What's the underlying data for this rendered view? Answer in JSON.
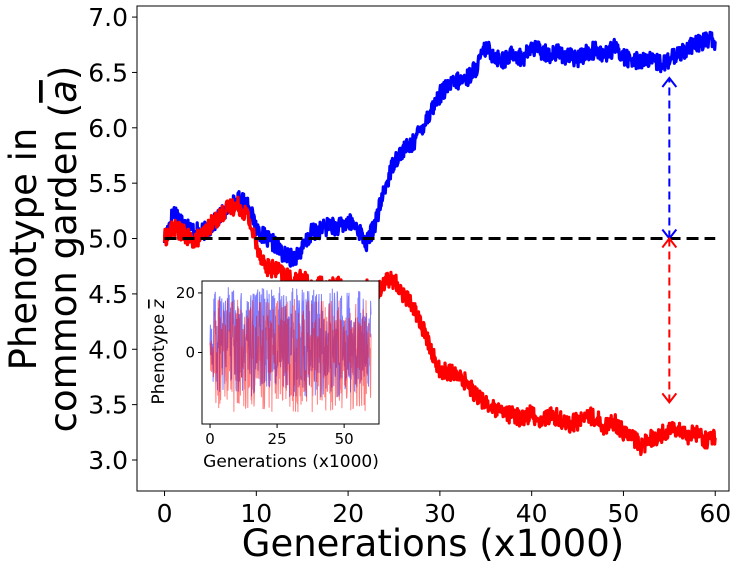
{
  "chart_data": [
    {
      "type": "line",
      "xlabel": "Generations (x1000)",
      "ylabel_line1": "Phenotype in",
      "ylabel_line2": "common garden (",
      "ylabel_symbol": "a",
      "ylabel_close": ")",
      "xlim": [
        -3,
        61.5
      ],
      "ylim": [
        2.72,
        7.1
      ],
      "xticks": [
        0,
        10,
        20,
        30,
        40,
        50,
        60
      ],
      "yticks": [
        3.0,
        3.5,
        4.0,
        4.5,
        5.0,
        5.5,
        6.0,
        6.5,
        7.0
      ],
      "ytick_labels": [
        "3.0",
        "3.5",
        "4.0",
        "4.5",
        "5.0",
        "5.5",
        "6.0",
        "6.5",
        "7.0"
      ],
      "reference_line": {
        "y": 5.0,
        "x_start": 0,
        "x_end": 60,
        "color": "#000000",
        "style": "dashed"
      },
      "series": [
        {
          "color": "#0000ff",
          "x": [
            0,
            1,
            2,
            3,
            4,
            5,
            6,
            7,
            8,
            9,
            10,
            11,
            12,
            13,
            14,
            15,
            16,
            17,
            18,
            19,
            20,
            21,
            22,
            23,
            24,
            25,
            26,
            27,
            28,
            29,
            30,
            31,
            32,
            33,
            34,
            35,
            36,
            37,
            38,
            39,
            40,
            41,
            42,
            43,
            44,
            45,
            46,
            47,
            48,
            49,
            50,
            51,
            52,
            53,
            54,
            55,
            56,
            57,
            58,
            59,
            60
          ],
          "y": [
            5.0,
            5.25,
            5.15,
            5.08,
            5.05,
            5.1,
            5.2,
            5.28,
            5.35,
            5.32,
            5.1,
            5.0,
            4.95,
            4.85,
            4.82,
            4.9,
            5.05,
            5.08,
            5.12,
            5.1,
            5.15,
            5.1,
            4.95,
            5.15,
            5.45,
            5.7,
            5.8,
            5.85,
            6.0,
            6.15,
            6.3,
            6.38,
            6.42,
            6.45,
            6.55,
            6.72,
            6.65,
            6.6,
            6.68,
            6.62,
            6.72,
            6.7,
            6.66,
            6.68,
            6.64,
            6.62,
            6.68,
            6.7,
            6.66,
            6.72,
            6.65,
            6.6,
            6.62,
            6.6,
            6.58,
            6.6,
            6.68,
            6.72,
            6.75,
            6.8,
            6.78
          ]
        },
        {
          "color": "#ff0000",
          "x": [
            0,
            1,
            2,
            3,
            4,
            5,
            6,
            7,
            8,
            9,
            10,
            11,
            12,
            13,
            14,
            15,
            16,
            17,
            18,
            19,
            20,
            21,
            22,
            23,
            24,
            25,
            26,
            27,
            28,
            29,
            30,
            31,
            32,
            33,
            34,
            35,
            36,
            37,
            38,
            39,
            40,
            41,
            42,
            43,
            44,
            45,
            46,
            47,
            48,
            49,
            50,
            51,
            52,
            53,
            54,
            55,
            56,
            57,
            58,
            59,
            60
          ],
          "y": [
            5.0,
            5.1,
            5.05,
            4.98,
            5.02,
            5.12,
            5.2,
            5.28,
            5.3,
            5.22,
            4.95,
            4.75,
            4.72,
            4.68,
            4.6,
            4.65,
            4.55,
            4.58,
            4.55,
            4.6,
            4.5,
            4.52,
            4.55,
            4.5,
            4.62,
            4.62,
            4.5,
            4.4,
            4.22,
            4.0,
            3.8,
            3.8,
            3.75,
            3.7,
            3.58,
            3.52,
            3.45,
            3.42,
            3.4,
            3.38,
            3.42,
            3.35,
            3.4,
            3.38,
            3.32,
            3.35,
            3.4,
            3.38,
            3.3,
            3.35,
            3.25,
            3.2,
            3.12,
            3.2,
            3.22,
            3.28,
            3.3,
            3.22,
            3.25,
            3.18,
            3.2
          ]
        }
      ],
      "annotations": [
        {
          "type": "double-arrow",
          "x": 55,
          "y_from": 5.0,
          "y_to": 6.45,
          "color": "#0000ff",
          "style": "dashed"
        },
        {
          "type": "double-arrow",
          "x": 55,
          "y_from": 5.0,
          "y_to": 3.52,
          "color": "#ff0000",
          "style": "dashed"
        }
      ]
    },
    {
      "type": "line",
      "role": "inset",
      "xlabel": "Generations (x1000)",
      "ylabel_prefix": "Phenotype ",
      "ylabel_symbol": "z",
      "xlim": [
        -3,
        63
      ],
      "ylim": [
        -24,
        24
      ],
      "xticks": [
        0,
        25,
        50
      ],
      "yticks": [
        0,
        20
      ],
      "series": [
        {
          "color": "#0000ff",
          "opacity": 0.5,
          "x_range": [
            0,
            60
          ],
          "band_low": -15,
          "band_high": 22
        },
        {
          "color": "#ff0000",
          "opacity": 0.5,
          "x_range": [
            0,
            60
          ],
          "band_low": -20,
          "band_high": 18
        }
      ]
    }
  ]
}
